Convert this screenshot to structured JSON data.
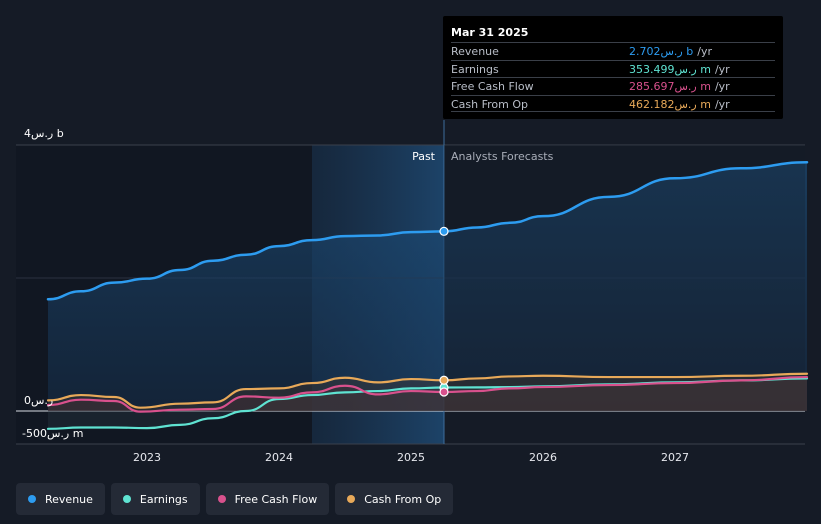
{
  "tooltip": {
    "date": "Mar 31 2025",
    "rows": [
      {
        "name": "Revenue",
        "value": "2.702ر.س b",
        "unit": "/yr",
        "color": "#2d9cf0"
      },
      {
        "name": "Earnings",
        "value": "353.499ر.س m",
        "unit": "/yr",
        "color": "#5fe3d2"
      },
      {
        "name": "Free Cash Flow",
        "value": "285.697ر.س m",
        "unit": "/yr",
        "color": "#d9518d"
      },
      {
        "name": "Cash From Op",
        "value": "462.182ر.س m",
        "unit": "/yr",
        "color": "#e8a959"
      }
    ]
  },
  "labels": {
    "past": "Past",
    "forecast": "Analysts Forecasts"
  },
  "colors": {
    "revenue": "#2d9cf0",
    "earnings": "#5fe3d2",
    "fcf": "#d9518d",
    "cfo": "#e8a959",
    "background": "#151b26",
    "past_band": "#1a3a5c"
  },
  "legend": [
    {
      "label": "Revenue",
      "color": "#2d9cf0"
    },
    {
      "label": "Earnings",
      "color": "#5fe3d2"
    },
    {
      "label": "Free Cash Flow",
      "color": "#d9518d"
    },
    {
      "label": "Cash From Op",
      "color": "#e8a959"
    }
  ],
  "chart_data": {
    "type": "line",
    "title": "",
    "xlabel": "",
    "ylabel": "",
    "xlim": [
      2022.25,
      2028.0
    ],
    "ylim": [
      -500,
      4000
    ],
    "y_ticks": [
      {
        "value": 4000,
        "label": "4ر.س b"
      },
      {
        "value": 0,
        "label": "0ر.س"
      },
      {
        "value": -500,
        "label": "-500ر.س m"
      }
    ],
    "x_ticks": [
      {
        "value": 2023.0,
        "label": "2023"
      },
      {
        "value": 2024.0,
        "label": "2024"
      },
      {
        "value": 2025.0,
        "label": "2025"
      },
      {
        "value": 2026.0,
        "label": "2026"
      },
      {
        "value": 2027.0,
        "label": "2027"
      }
    ],
    "past_start": 2024.25,
    "divider": 2025.25,
    "series": [
      {
        "name": "Revenue",
        "key": "revenue",
        "fill": true,
        "points": [
          [
            2022.25,
            1680
          ],
          [
            2022.5,
            1800
          ],
          [
            2022.75,
            1930
          ],
          [
            2023.0,
            1990
          ],
          [
            2023.25,
            2120
          ],
          [
            2023.5,
            2260
          ],
          [
            2023.75,
            2350
          ],
          [
            2024.0,
            2480
          ],
          [
            2024.25,
            2570
          ],
          [
            2024.5,
            2630
          ],
          [
            2024.75,
            2640
          ],
          [
            2025.0,
            2690
          ],
          [
            2025.25,
            2702
          ],
          [
            2025.5,
            2760
          ],
          [
            2025.75,
            2830
          ],
          [
            2026.0,
            2930
          ],
          [
            2026.5,
            3220
          ],
          [
            2027.0,
            3500
          ],
          [
            2027.5,
            3650
          ],
          [
            2028.0,
            3740
          ]
        ]
      },
      {
        "name": "Earnings",
        "key": "earnings",
        "fill": false,
        "points": [
          [
            2022.25,
            -270
          ],
          [
            2022.5,
            -250
          ],
          [
            2022.75,
            -250
          ],
          [
            2023.0,
            -260
          ],
          [
            2023.25,
            -210
          ],
          [
            2023.5,
            -110
          ],
          [
            2023.75,
            0
          ],
          [
            2024.0,
            180
          ],
          [
            2024.25,
            240
          ],
          [
            2024.5,
            280
          ],
          [
            2024.75,
            300
          ],
          [
            2025.0,
            340
          ],
          [
            2025.25,
            353
          ],
          [
            2025.5,
            355
          ],
          [
            2025.75,
            360
          ],
          [
            2026.0,
            370
          ],
          [
            2026.5,
            400
          ],
          [
            2027.0,
            430
          ],
          [
            2027.5,
            460
          ],
          [
            2028.0,
            490
          ]
        ]
      },
      {
        "name": "Free Cash Flow",
        "key": "fcf",
        "fill": false,
        "points": [
          [
            2022.25,
            90
          ],
          [
            2022.5,
            170
          ],
          [
            2022.75,
            150
          ],
          [
            2022.95,
            -10
          ],
          [
            2023.25,
            20
          ],
          [
            2023.5,
            30
          ],
          [
            2023.75,
            220
          ],
          [
            2024.0,
            200
          ],
          [
            2024.25,
            280
          ],
          [
            2024.5,
            380
          ],
          [
            2024.75,
            250
          ],
          [
            2025.0,
            300
          ],
          [
            2025.25,
            286
          ],
          [
            2025.5,
            300
          ],
          [
            2025.75,
            340
          ],
          [
            2026.0,
            360
          ],
          [
            2026.5,
            390
          ],
          [
            2027.0,
            420
          ],
          [
            2027.5,
            460
          ],
          [
            2028.0,
            510
          ]
        ]
      },
      {
        "name": "Cash From Op",
        "key": "cfo",
        "fill": false,
        "points": [
          [
            2022.25,
            160
          ],
          [
            2022.5,
            240
          ],
          [
            2022.75,
            210
          ],
          [
            2022.95,
            50
          ],
          [
            2023.25,
            110
          ],
          [
            2023.5,
            130
          ],
          [
            2023.75,
            330
          ],
          [
            2024.0,
            340
          ],
          [
            2024.25,
            420
          ],
          [
            2024.5,
            500
          ],
          [
            2024.75,
            430
          ],
          [
            2025.0,
            480
          ],
          [
            2025.25,
            462
          ],
          [
            2025.5,
            490
          ],
          [
            2025.75,
            520
          ],
          [
            2026.0,
            530
          ],
          [
            2026.5,
            510
          ],
          [
            2027.0,
            510
          ],
          [
            2027.5,
            530
          ],
          [
            2028.0,
            560
          ]
        ]
      }
    ]
  }
}
